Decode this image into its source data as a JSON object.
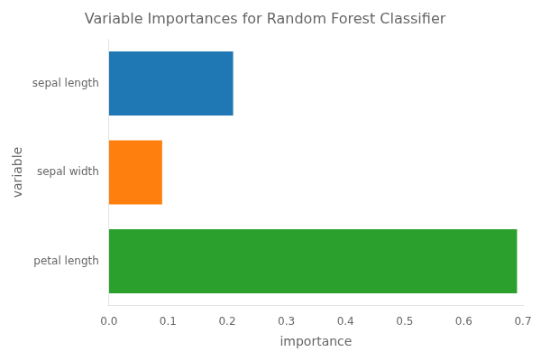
{
  "chart_data": {
    "type": "bar",
    "orientation": "horizontal",
    "title": "Variable Importances for Random Forest Classifier",
    "categories": [
      "petal length",
      "sepal width",
      "sepal length"
    ],
    "values": [
      0.69,
      0.09,
      0.21
    ],
    "colors": [
      "#2ca02c",
      "#ff7f0e",
      "#1f77b4"
    ],
    "xlabel": "importance",
    "ylabel": "variable",
    "xlim": [
      0.0,
      0.7
    ],
    "xticks": [
      {
        "value": 0,
        "label": "0.0"
      },
      0.1,
      0.2,
      0.3,
      0.4,
      0.5,
      0.6,
      0.7
    ],
    "grid": false
  }
}
